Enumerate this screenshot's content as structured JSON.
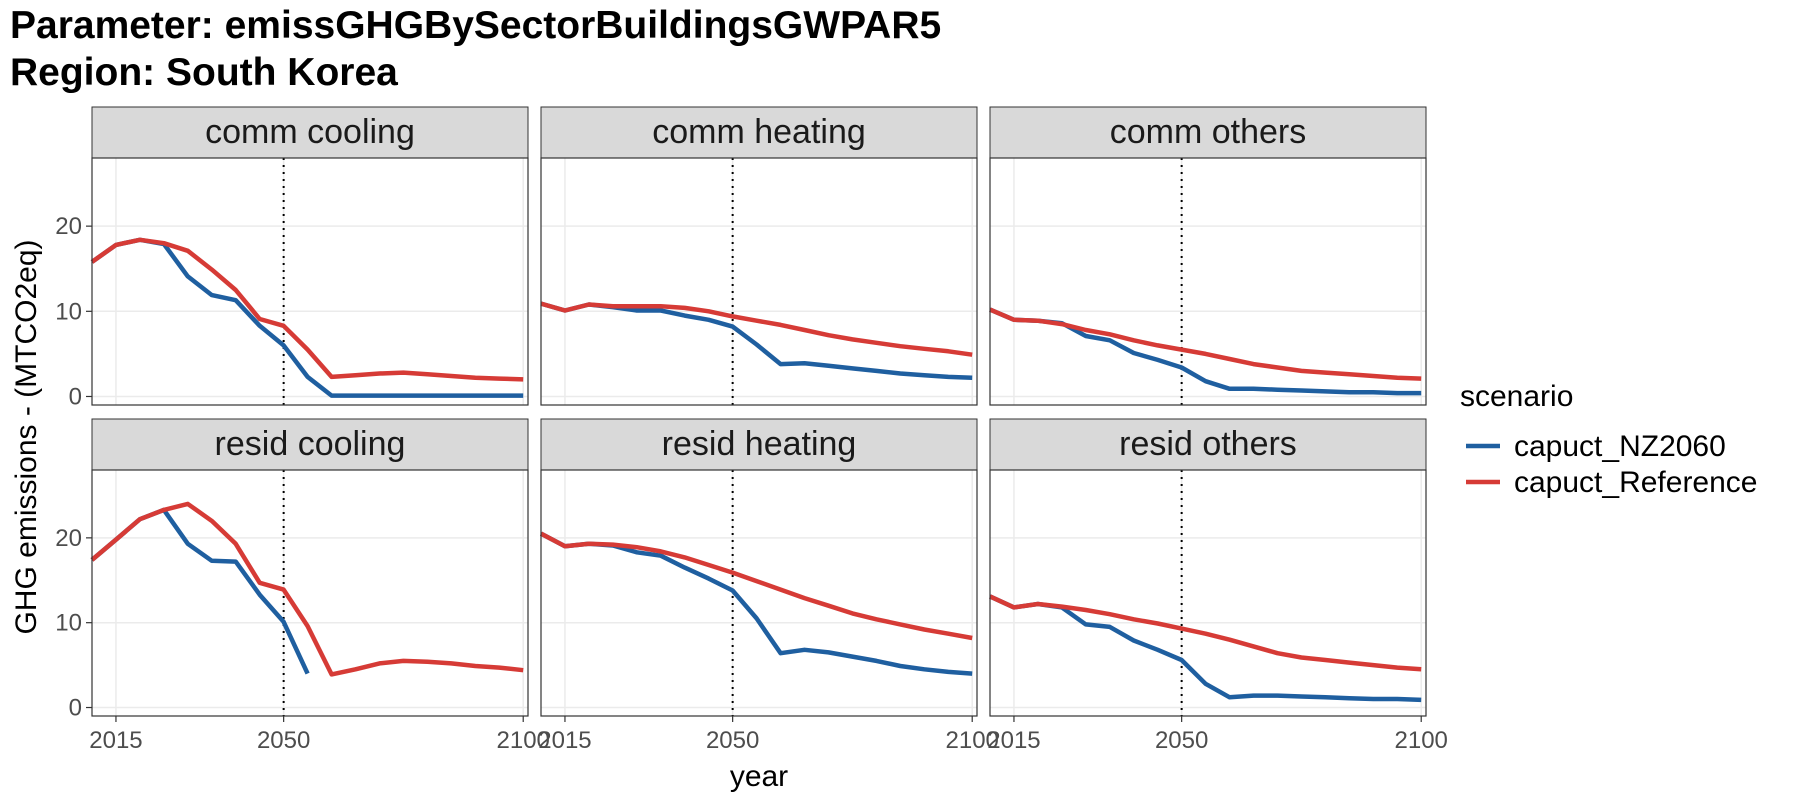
{
  "chart_data": {
    "type": "line",
    "title": "Parameter: emissGHGBySectorBuildingsGWPAR5",
    "subtitle": "Region: South Korea",
    "xlabel": "year",
    "ylabel": "GHG emissions - (MTCO2eq)",
    "xlim": [
      2010,
      2101
    ],
    "ylim": [
      -1,
      28
    ],
    "x_ticks": [
      2015,
      2050,
      2100
    ],
    "y_ticks": [
      0,
      10,
      20
    ],
    "reference_line_x": 2050,
    "grid": true,
    "legend": {
      "title": "scenario",
      "position": "right",
      "entries": [
        {
          "name": "capuct_NZ2060",
          "color": "#1f5fa0"
        },
        {
          "name": "capuct_Reference",
          "color": "#d63b36"
        }
      ]
    },
    "facets": [
      {
        "label": "comm cooling",
        "series": [
          {
            "name": "capuct_NZ2060",
            "x": [
              2010,
              2015,
              2020,
              2025,
              2030,
              2035,
              2040,
              2045,
              2050,
              2055,
              2060,
              2065,
              2070,
              2075,
              2080,
              2085,
              2090,
              2095,
              2100
            ],
            "y": [
              15.8,
              17.8,
              18.4,
              17.9,
              14.1,
              11.9,
              11.3,
              8.3,
              6.0,
              2.3,
              0.1,
              0.1,
              0.1,
              0.1,
              0.1,
              0.1,
              0.1,
              0.1,
              0.1
            ]
          },
          {
            "name": "capuct_Reference",
            "x": [
              2010,
              2015,
              2020,
              2025,
              2030,
              2035,
              2040,
              2045,
              2050,
              2055,
              2060,
              2065,
              2070,
              2075,
              2080,
              2085,
              2090,
              2095,
              2100
            ],
            "y": [
              15.8,
              17.8,
              18.4,
              18.0,
              17.1,
              14.9,
              12.5,
              9.1,
              8.3,
              5.5,
              2.3,
              2.5,
              2.7,
              2.8,
              2.6,
              2.4,
              2.2,
              2.1,
              2.0
            ]
          }
        ]
      },
      {
        "label": "comm heating",
        "series": [
          {
            "name": "capuct_NZ2060",
            "x": [
              2010,
              2015,
              2020,
              2025,
              2030,
              2035,
              2040,
              2045,
              2050,
              2055,
              2060,
              2065,
              2070,
              2075,
              2080,
              2085,
              2090,
              2095,
              2100
            ],
            "y": [
              10.9,
              10.1,
              10.8,
              10.5,
              10.1,
              10.1,
              9.5,
              9.0,
              8.2,
              6.1,
              3.8,
              3.9,
              3.6,
              3.3,
              3.0,
              2.7,
              2.5,
              2.3,
              2.2
            ]
          },
          {
            "name": "capuct_Reference",
            "x": [
              2010,
              2015,
              2020,
              2025,
              2030,
              2035,
              2040,
              2045,
              2050,
              2055,
              2060,
              2065,
              2070,
              2075,
              2080,
              2085,
              2090,
              2095,
              2100
            ],
            "y": [
              10.9,
              10.1,
              10.8,
              10.6,
              10.6,
              10.6,
              10.4,
              10.0,
              9.4,
              8.9,
              8.4,
              7.8,
              7.2,
              6.7,
              6.3,
              5.9,
              5.6,
              5.3,
              4.9
            ]
          }
        ]
      },
      {
        "label": "comm others",
        "series": [
          {
            "name": "capuct_NZ2060",
            "x": [
              2010,
              2015,
              2020,
              2025,
              2030,
              2035,
              2040,
              2045,
              2050,
              2055,
              2060,
              2065,
              2070,
              2075,
              2080,
              2085,
              2090,
              2095,
              2100
            ],
            "y": [
              10.2,
              9.0,
              8.9,
              8.6,
              7.1,
              6.6,
              5.1,
              4.3,
              3.4,
              1.8,
              0.9,
              0.9,
              0.8,
              0.7,
              0.6,
              0.5,
              0.5,
              0.4,
              0.4
            ]
          },
          {
            "name": "capuct_Reference",
            "x": [
              2010,
              2015,
              2020,
              2025,
              2030,
              2035,
              2040,
              2045,
              2050,
              2055,
              2060,
              2065,
              2070,
              2075,
              2080,
              2085,
              2090,
              2095,
              2100
            ],
            "y": [
              10.2,
              9.0,
              8.9,
              8.5,
              7.8,
              7.3,
              6.6,
              6.0,
              5.5,
              5.0,
              4.4,
              3.8,
              3.4,
              3.0,
              2.8,
              2.6,
              2.4,
              2.2,
              2.1
            ]
          }
        ]
      },
      {
        "label": "resid cooling",
        "series": [
          {
            "name": "capuct_NZ2060",
            "x": [
              2010,
              2015,
              2020,
              2025,
              2030,
              2035,
              2040,
              2045,
              2050,
              2055
            ],
            "y": [
              17.4,
              19.8,
              22.2,
              23.3,
              19.3,
              17.3,
              17.2,
              13.3,
              10.1,
              4.0
            ]
          },
          {
            "name": "capuct_Reference",
            "x": [
              2010,
              2015,
              2020,
              2025,
              2030,
              2035,
              2040,
              2045,
              2050,
              2055,
              2060,
              2065,
              2070,
              2075,
              2080,
              2085,
              2090,
              2095,
              2100
            ],
            "y": [
              17.4,
              19.8,
              22.2,
              23.3,
              24.0,
              22.0,
              19.3,
              14.7,
              13.9,
              9.6,
              3.9,
              4.5,
              5.2,
              5.5,
              5.4,
              5.2,
              4.9,
              4.7,
              4.4
            ]
          }
        ]
      },
      {
        "label": "resid heating",
        "series": [
          {
            "name": "capuct_NZ2060",
            "x": [
              2010,
              2015,
              2020,
              2025,
              2030,
              2035,
              2040,
              2045,
              2050,
              2055,
              2060,
              2065,
              2070,
              2075,
              2080,
              2085,
              2090,
              2095,
              2100
            ],
            "y": [
              20.5,
              19.0,
              19.3,
              19.1,
              18.3,
              17.9,
              16.5,
              15.2,
              13.8,
              10.5,
              6.4,
              6.8,
              6.5,
              6.0,
              5.5,
              4.9,
              4.5,
              4.2,
              4.0
            ]
          },
          {
            "name": "capuct_Reference",
            "x": [
              2010,
              2015,
              2020,
              2025,
              2030,
              2035,
              2040,
              2045,
              2050,
              2055,
              2060,
              2065,
              2070,
              2075,
              2080,
              2085,
              2090,
              2095,
              2100
            ],
            "y": [
              20.5,
              19.0,
              19.3,
              19.2,
              18.9,
              18.4,
              17.7,
              16.8,
              15.9,
              14.9,
              13.9,
              12.9,
              12.0,
              11.1,
              10.4,
              9.8,
              9.2,
              8.7,
              8.2
            ]
          }
        ]
      },
      {
        "label": "resid others",
        "series": [
          {
            "name": "capuct_NZ2060",
            "x": [
              2010,
              2015,
              2020,
              2025,
              2030,
              2035,
              2040,
              2045,
              2050,
              2055,
              2060,
              2065,
              2070,
              2075,
              2080,
              2085,
              2090,
              2095,
              2100
            ],
            "y": [
              13.1,
              11.8,
              12.2,
              11.8,
              9.8,
              9.5,
              7.9,
              6.8,
              5.6,
              2.8,
              1.2,
              1.4,
              1.4,
              1.3,
              1.2,
              1.1,
              1.0,
              1.0,
              0.9
            ]
          },
          {
            "name": "capuct_Reference",
            "x": [
              2010,
              2015,
              2020,
              2025,
              2030,
              2035,
              2040,
              2045,
              2050,
              2055,
              2060,
              2065,
              2070,
              2075,
              2080,
              2085,
              2090,
              2095,
              2100
            ],
            "y": [
              13.1,
              11.8,
              12.2,
              11.9,
              11.5,
              11.0,
              10.4,
              9.9,
              9.3,
              8.7,
              8.0,
              7.2,
              6.4,
              5.9,
              5.6,
              5.3,
              5.0,
              4.7,
              4.5
            ]
          }
        ]
      }
    ]
  }
}
